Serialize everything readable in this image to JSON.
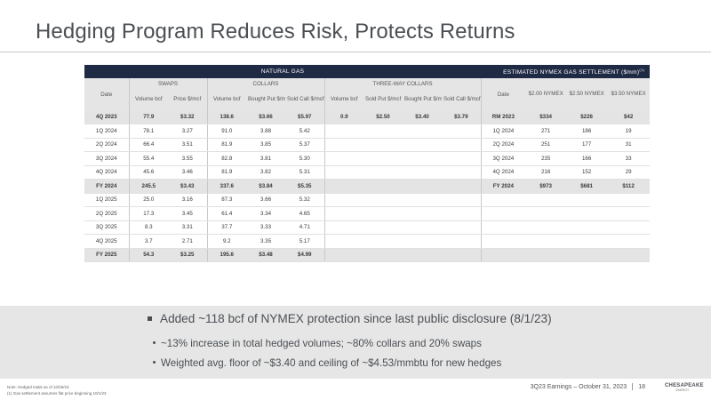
{
  "title": "Hedging Program Reduces Risk, Protects Returns",
  "table": {
    "banner_left": "NATURAL GAS",
    "banner_right": "ESTIMATED NYMEX GAS SETTLEMENT ($mm)",
    "banner_right_sup": "(1)",
    "date_label": "Date",
    "groups": {
      "swaps": "SWAPS",
      "collars": "COLLARS",
      "three_way": "THREE-WAY COLLARS"
    },
    "sub_headers": {
      "swaps_volume": "Volume bcf",
      "swaps_price": "Price $/mcf",
      "collars_volume": "Volume bcf",
      "collars_bought_put": "Bought Put $/mcf",
      "collars_sold_call": "Sold Call $/mcf",
      "tw_volume": "Volume bcf",
      "tw_sold_put": "Sold Put $/mcf",
      "tw_bought_put": "Bought Put $/mcf",
      "tw_sold_call": "Sold Call $/mcf"
    },
    "settlement_headers": {
      "date": "Date",
      "c1": "$2.00 NYMEX",
      "c2": "$2.50 NYMEX",
      "c3": "$3.50 NYMEX"
    },
    "rows": [
      {
        "date": "4Q 2023",
        "sv": "77.9",
        "sp": "$3.32",
        "cv": "138.6",
        "cbp": "$3.66",
        "csc": "$5.97",
        "tv": "0.9",
        "tsp": "$2.50",
        "tbp": "$3.40",
        "tsc": "$3.79",
        "edate": "RM 2023",
        "e1": "$334",
        "e2": "$226",
        "e3": "$42",
        "total": true
      },
      {
        "date": "1Q 2024",
        "sv": "78.1",
        "sp": "3.27",
        "cv": "91.0",
        "cbp": "3.88",
        "csc": "5.42",
        "tv": "",
        "tsp": "",
        "tbp": "",
        "tsc": "",
        "edate": "1Q 2024",
        "e1": "271",
        "e2": "186",
        "e3": "19",
        "total": false
      },
      {
        "date": "2Q 2024",
        "sv": "66.4",
        "sp": "3.51",
        "cv": "81.9",
        "cbp": "3.85",
        "csc": "5.37",
        "tv": "",
        "tsp": "",
        "tbp": "",
        "tsc": "",
        "edate": "2Q 2024",
        "e1": "251",
        "e2": "177",
        "e3": "31",
        "total": false
      },
      {
        "date": "3Q 2024",
        "sv": "55.4",
        "sp": "3.55",
        "cv": "82.8",
        "cbp": "3.81",
        "csc": "5.30",
        "tv": "",
        "tsp": "",
        "tbp": "",
        "tsc": "",
        "edate": "3Q 2024",
        "e1": "235",
        "e2": "166",
        "e3": "33",
        "total": false
      },
      {
        "date": "4Q 2024",
        "sv": "45.6",
        "sp": "3.46",
        "cv": "81.9",
        "cbp": "3.82",
        "csc": "5.31",
        "tv": "",
        "tsp": "",
        "tbp": "",
        "tsc": "",
        "edate": "4Q 2024",
        "e1": "216",
        "e2": "152",
        "e3": "29",
        "total": false
      },
      {
        "date": "FY 2024",
        "sv": "245.5",
        "sp": "$3.43",
        "cv": "337.6",
        "cbp": "$3.84",
        "csc": "$5.35",
        "tv": "",
        "tsp": "",
        "tbp": "",
        "tsc": "",
        "edate": "FY 2024",
        "e1": "$973",
        "e2": "$681",
        "e3": "$112",
        "total": true
      },
      {
        "date": "1Q 2025",
        "sv": "25.0",
        "sp": "3.16",
        "cv": "87.3",
        "cbp": "3.66",
        "csc": "5.32",
        "tv": "",
        "tsp": "",
        "tbp": "",
        "tsc": "",
        "edate": "",
        "e1": "",
        "e2": "",
        "e3": "",
        "total": false
      },
      {
        "date": "2Q 2025",
        "sv": "17.3",
        "sp": "3.45",
        "cv": "61.4",
        "cbp": "3.34",
        "csc": "4.65",
        "tv": "",
        "tsp": "",
        "tbp": "",
        "tsc": "",
        "edate": "",
        "e1": "",
        "e2": "",
        "e3": "",
        "total": false
      },
      {
        "date": "3Q 2025",
        "sv": "8.3",
        "sp": "3.31",
        "cv": "37.7",
        "cbp": "3.33",
        "csc": "4.71",
        "tv": "",
        "tsp": "",
        "tbp": "",
        "tsc": "",
        "edate": "",
        "e1": "",
        "e2": "",
        "e3": "",
        "total": false
      },
      {
        "date": "4Q 2025",
        "sv": "3.7",
        "sp": "2.71",
        "cv": "9.2",
        "cbp": "3.35",
        "csc": "5.17",
        "tv": "",
        "tsp": "",
        "tbp": "",
        "tsc": "",
        "edate": "",
        "e1": "",
        "e2": "",
        "e3": "",
        "total": false
      },
      {
        "date": "FY 2025",
        "sv": "54.3",
        "sp": "$3.25",
        "cv": "195.6",
        "cbp": "$3.48",
        "csc": "$4.99",
        "tv": "",
        "tsp": "",
        "tbp": "",
        "tsc": "",
        "edate": "",
        "e1": "",
        "e2": "",
        "e3": "",
        "total": true
      }
    ]
  },
  "bullets": {
    "main": "Added ~118 bcf of NYMEX protection since last public disclosure (8/1/23)",
    "sub1": "~13% increase in total hedged volumes; ~80% collars and 20% swaps",
    "sub2": "Weighted avg. floor of ~$3.40 and ceiling of ~$4.53/mmbtu for new hedges"
  },
  "notes": {
    "line1": "Note: Hedged totals as of 10/26/23",
    "line2": "(1)     Gas settlement assumes flat price beginning 10/1/23"
  },
  "footer": {
    "text": "3Q23 Earnings – October 31, 2023",
    "page": "18"
  },
  "logo": {
    "brand": "CHESAPEAKE",
    "sub": "ENERGY"
  },
  "colors": {
    "banner": "#1f2a44",
    "band": "#e6e6e6",
    "header_gray": "#e5e5e5"
  }
}
